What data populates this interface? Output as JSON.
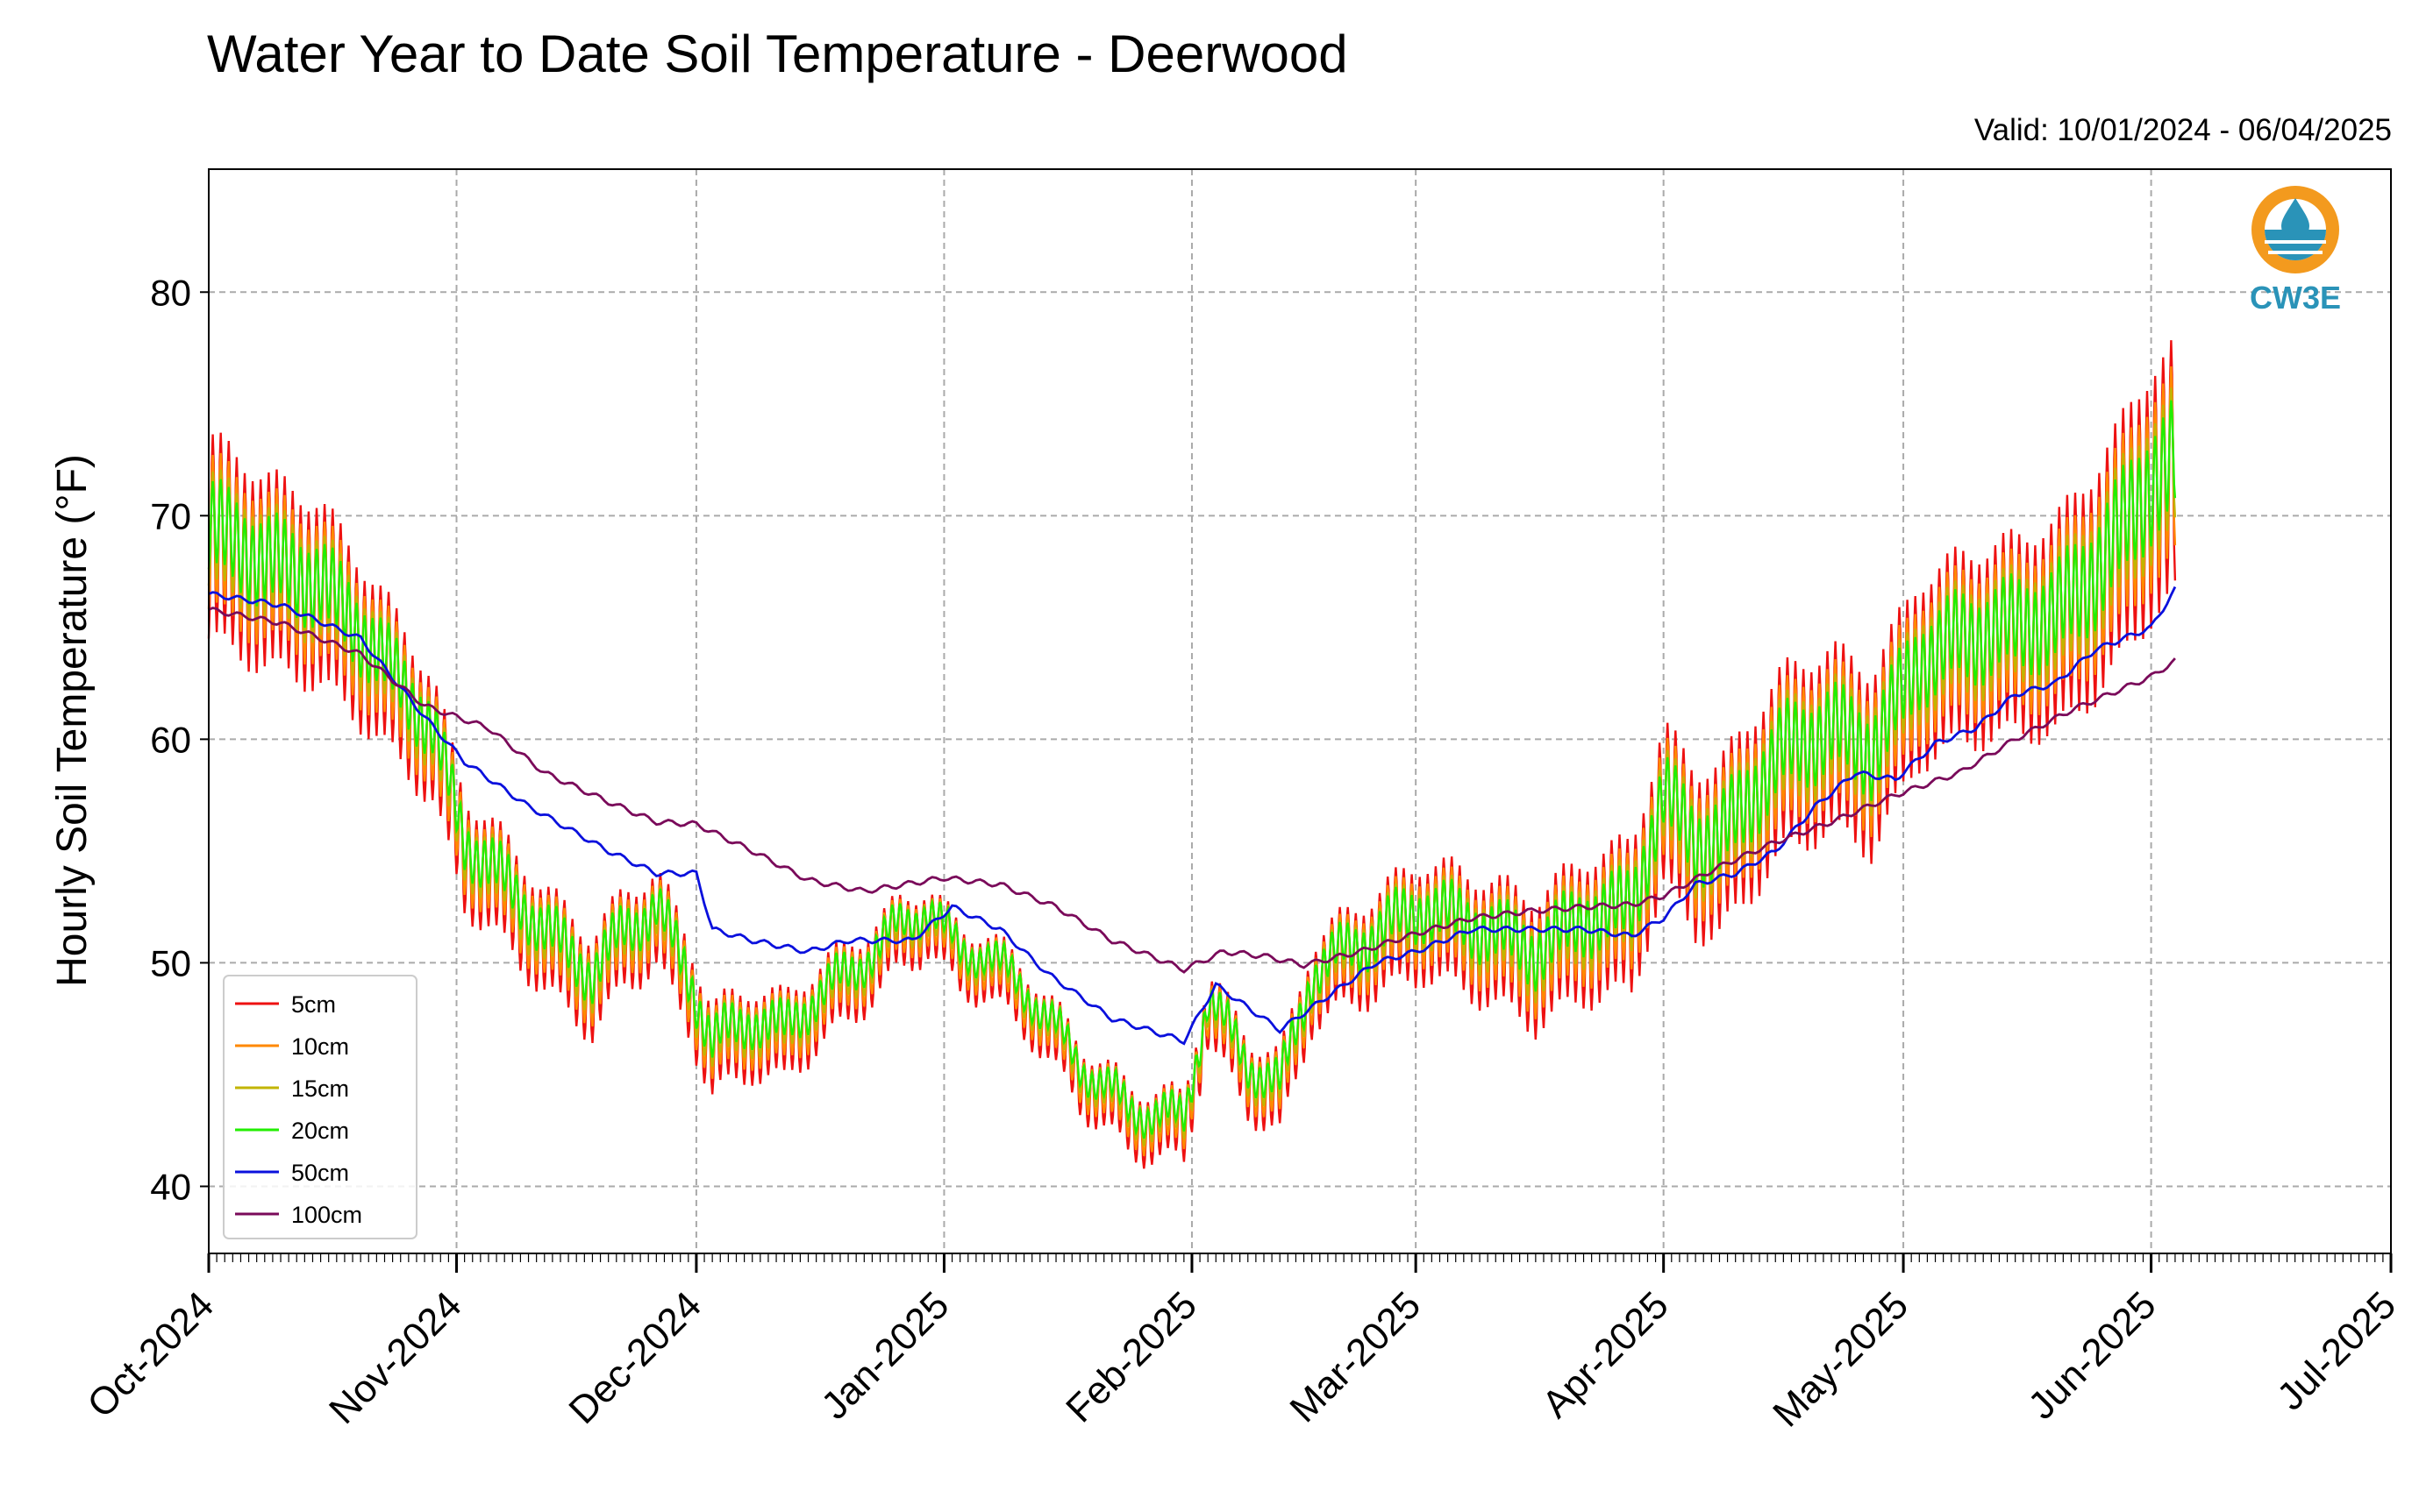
{
  "colors": {
    "5cm": "#ee1111",
    "10cm": "#ff8800",
    "15cm": "#c2b400",
    "20cm": "#22ee00",
    "50cm": "#0a10dd",
    "100cm": "#7a0a5a",
    "grid": "#aaaaaa",
    "logo_orange": "#f39a1e",
    "logo_blue": "#2a93b8"
  },
  "logo": {
    "text": "CW3E",
    "icon": "water-drop-icon"
  },
  "chart_data": {
    "type": "line",
    "title": "Water Year to Date Soil Temperature - Deerwood",
    "subtitle": "Valid: 10/01/2024 - 06/04/2025",
    "ylabel": "Hourly Soil Temperature (°F)",
    "xlabel": "",
    "x_unit": "date",
    "xlim": [
      "2024-10-01",
      "2025-07-01"
    ],
    "ylim": [
      37,
      85.5
    ],
    "yticks": [
      40,
      50,
      60,
      70,
      80
    ],
    "xticks": [
      {
        "date": "2024-10-01",
        "label": "Oct-2024"
      },
      {
        "date": "2024-11-01",
        "label": "Nov-2024"
      },
      {
        "date": "2024-12-01",
        "label": "Dec-2024"
      },
      {
        "date": "2025-01-01",
        "label": "Jan-2025"
      },
      {
        "date": "2025-02-01",
        "label": "Feb-2025"
      },
      {
        "date": "2025-03-01",
        "label": "Mar-2025"
      },
      {
        "date": "2025-04-01",
        "label": "Apr-2025"
      },
      {
        "date": "2025-05-01",
        "label": "May-2025"
      },
      {
        "date": "2025-06-01",
        "label": "Jun-2025"
      },
      {
        "date": "2025-07-01",
        "label": "Jul-2025"
      }
    ],
    "grid": true,
    "legend_position": "lower-left",
    "series": [
      {
        "name": "5cm",
        "color_key": "5cm",
        "diurnal": true
      },
      {
        "name": "10cm",
        "color_key": "10cm",
        "diurnal": true
      },
      {
        "name": "15cm",
        "color_key": "15cm",
        "diurnal": true
      },
      {
        "name": "20cm",
        "color_key": "20cm",
        "diurnal": true
      },
      {
        "name": "50cm",
        "color_key": "50cm",
        "diurnal": false
      },
      {
        "name": "100cm",
        "color_key": "100cm",
        "diurnal": false
      }
    ],
    "daily_mean_5cm": {
      "dates": [
        "2024-10-01",
        "2024-10-08",
        "2024-10-15",
        "2024-10-22",
        "2024-10-29",
        "2024-11-02",
        "2024-11-05",
        "2024-11-12",
        "2024-11-18",
        "2024-11-22",
        "2024-11-26",
        "2024-11-30",
        "2024-12-03",
        "2024-12-08",
        "2024-12-12",
        "2024-12-16",
        "2024-12-20",
        "2024-12-26",
        "2024-12-30",
        "2025-01-03",
        "2025-01-06",
        "2025-01-12",
        "2025-01-18",
        "2025-01-24",
        "2025-01-31",
        "2025-02-03",
        "2025-02-08",
        "2025-02-12",
        "2025-02-16",
        "2025-02-20",
        "2025-02-25",
        "2025-03-02",
        "2025-03-06",
        "2025-03-10",
        "2025-03-16",
        "2025-03-22",
        "2025-03-28",
        "2025-04-01",
        "2025-04-05",
        "2025-04-08",
        "2025-04-12",
        "2025-04-16",
        "2025-04-22",
        "2025-04-27",
        "2025-04-30",
        "2025-05-03",
        "2025-05-08",
        "2025-05-14",
        "2025-05-20",
        "2025-05-25",
        "2025-06-01",
        "2025-06-04"
      ],
      "values": [
        69,
        67.5,
        66.5,
        63.5,
        60,
        55,
        54,
        51,
        49,
        51,
        52,
        49,
        46,
        47,
        46.5,
        48,
        49,
        51,
        52,
        50,
        50,
        48,
        45,
        43,
        42.5,
        48,
        45,
        44,
        49,
        50,
        51,
        52,
        51.5,
        51,
        50,
        51.5,
        52,
        57,
        55,
        55,
        57,
        59,
        60,
        59,
        61,
        63,
        64,
        64.5,
        65,
        67,
        71,
        72
      ]
    },
    "daily_amplitude_5cm": {
      "dates": [
        "2024-10-01",
        "2024-10-15",
        "2024-11-01",
        "2024-11-15",
        "2024-12-01",
        "2024-12-15",
        "2025-01-01",
        "2025-01-15",
        "2025-02-01",
        "2025-02-15",
        "2025-03-01",
        "2025-03-15",
        "2025-04-01",
        "2025-04-15",
        "2025-05-01",
        "2025-05-15",
        "2025-06-01",
        "2025-06-04"
      ],
      "values": [
        4.5,
        4.0,
        2.5,
        2.2,
        2.0,
        1.8,
        1.4,
        1.4,
        1.5,
        1.8,
        2.5,
        2.8,
        3.5,
        4.0,
        4.0,
        4.3,
        5.5,
        5.5
      ]
    },
    "daily_mean_50cm": {
      "dates": [
        "2024-10-01",
        "2024-10-10",
        "2024-10-20",
        "2024-10-28",
        "2024-11-02",
        "2024-11-10",
        "2024-11-20",
        "2024-11-26",
        "2024-12-01",
        "2024-12-03",
        "2024-12-08",
        "2024-12-15",
        "2024-12-20",
        "2024-12-28",
        "2025-01-02",
        "2025-01-08",
        "2025-01-14",
        "2025-01-22",
        "2025-01-31",
        "2025-02-04",
        "2025-02-08",
        "2025-02-12",
        "2025-02-18",
        "2025-02-24",
        "2025-03-01",
        "2025-03-08",
        "2025-03-15",
        "2025-03-22",
        "2025-03-28",
        "2025-04-01",
        "2025-04-05",
        "2025-04-10",
        "2025-04-15",
        "2025-04-20",
        "2025-04-25",
        "2025-04-30",
        "2025-05-05",
        "2025-05-10",
        "2025-05-15",
        "2025-05-20",
        "2025-05-25",
        "2025-06-01",
        "2025-06-04"
      ],
      "values": [
        66.5,
        66,
        64.5,
        61,
        59,
        57,
        55,
        54,
        54,
        51.5,
        51,
        50.5,
        51,
        51,
        52.5,
        51.5,
        49.5,
        47.5,
        46.5,
        49,
        48,
        47,
        48.5,
        50,
        50.5,
        51.5,
        51.5,
        51.5,
        51.2,
        52,
        53.5,
        54,
        55,
        57,
        58.5,
        58.2,
        59.8,
        60.5,
        62,
        62.5,
        64,
        65,
        66.7
      ]
    },
    "daily_mean_100cm": {
      "dates": [
        "2024-10-01",
        "2024-10-10",
        "2024-10-20",
        "2024-10-28",
        "2024-11-05",
        "2024-11-12",
        "2024-11-20",
        "2024-11-26",
        "2024-12-01",
        "2024-12-08",
        "2024-12-15",
        "2024-12-22",
        "2025-01-01",
        "2025-01-08",
        "2025-01-15",
        "2025-01-22",
        "2025-01-31",
        "2025-02-05",
        "2025-02-10",
        "2025-02-15",
        "2025-02-22",
        "2025-03-01",
        "2025-03-08",
        "2025-03-15",
        "2025-03-22",
        "2025-03-28",
        "2025-04-01",
        "2025-04-08",
        "2025-04-15",
        "2025-04-22",
        "2025-04-30",
        "2025-05-08",
        "2025-05-15",
        "2025-05-22",
        "2025-06-01",
        "2025-06-04"
      ],
      "values": [
        65.8,
        65.2,
        63.8,
        61.5,
        60.5,
        58.5,
        57.2,
        56.3,
        56.2,
        55,
        53.7,
        53.2,
        53.8,
        53.5,
        52.5,
        51,
        49.7,
        50.5,
        50.3,
        49.9,
        50.5,
        51.3,
        52,
        52.3,
        52.5,
        52.6,
        53,
        54.3,
        55.4,
        56.3,
        57.5,
        58.5,
        60,
        61.3,
        62.8,
        63.5
      ]
    }
  }
}
